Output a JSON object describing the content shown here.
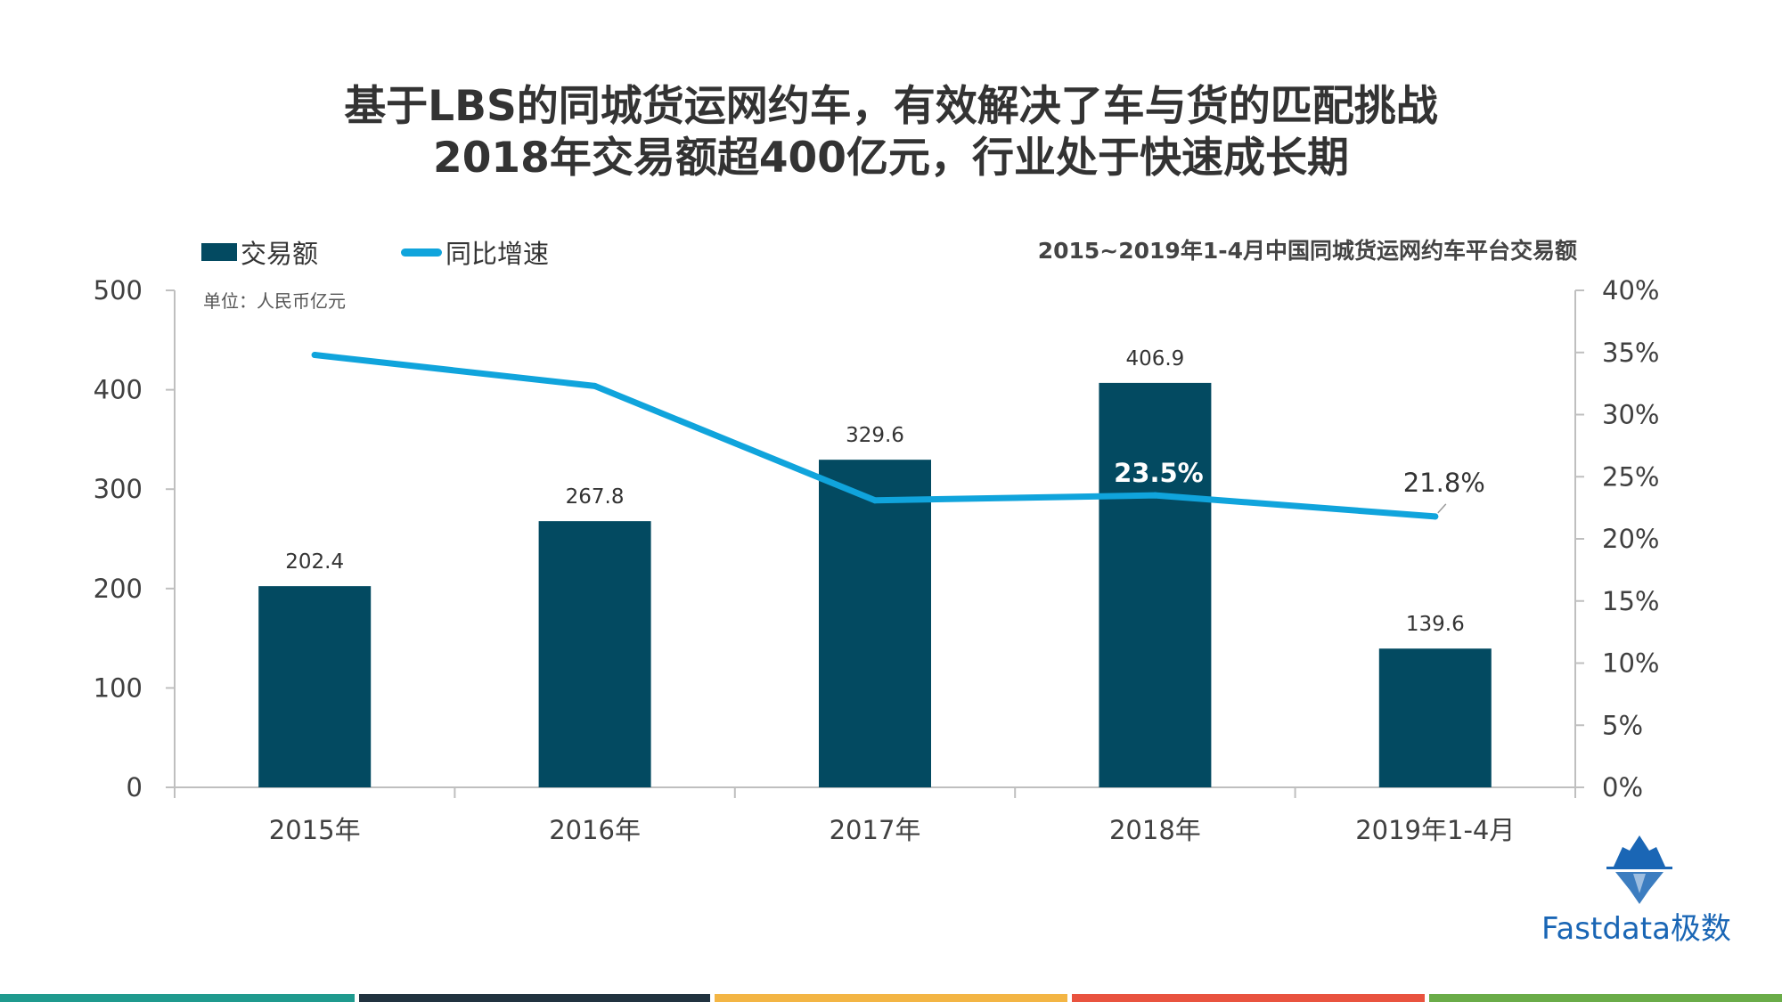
{
  "header": {
    "title_line1": "基于LBS的同城货运网约车，有效解决了车与货的匹配挑战",
    "title_line2": "2018年交易额超400亿元，行业处于快速成长期"
  },
  "legend": {
    "bar_label": "交易额",
    "line_label": "同比增速"
  },
  "chart_caption": "2015~2019年1-4月中国同城货运网约车平台交易额",
  "unit_label": "单位：人民币亿元",
  "brand": {
    "name": "Fastdata极数",
    "logo_icon": "iceberg-logo-icon"
  },
  "colors": {
    "bar": "#034a61",
    "line": "#10a4dc",
    "axis": "#bfbfbf",
    "text": "#404040",
    "strip": [
      "#1f9a8e",
      "#213340",
      "#f3b544",
      "#e9533f",
      "#6aac48"
    ]
  },
  "chart_data": {
    "type": "bar",
    "categories": [
      "2015年",
      "2016年",
      "2017年",
      "2018年",
      "2019年1-4月"
    ],
    "series": [
      {
        "name": "交易额",
        "type": "bar",
        "axis": "left",
        "values": [
          202.4,
          267.8,
          329.6,
          406.9,
          139.6
        ],
        "data_labels": [
          "202.4",
          "267.8",
          "329.6",
          "406.9",
          "139.6"
        ]
      },
      {
        "name": "同比增速",
        "type": "line",
        "axis": "right",
        "values": [
          34.8,
          32.3,
          23.1,
          23.5,
          21.8
        ],
        "data_labels": [
          "",
          "",
          "",
          "23.5%",
          "21.8%"
        ]
      }
    ],
    "y_left": {
      "ylim": [
        0,
        500
      ],
      "ticks": [
        "0",
        "100",
        "200",
        "300",
        "400",
        "500"
      ]
    },
    "y_right": {
      "ylim": [
        0,
        40
      ],
      "ticks": [
        "0%",
        "5%",
        "10%",
        "15%",
        "20%",
        "25%",
        "30%",
        "35%",
        "40%"
      ]
    },
    "legend_position": "top-left",
    "grid": false
  }
}
